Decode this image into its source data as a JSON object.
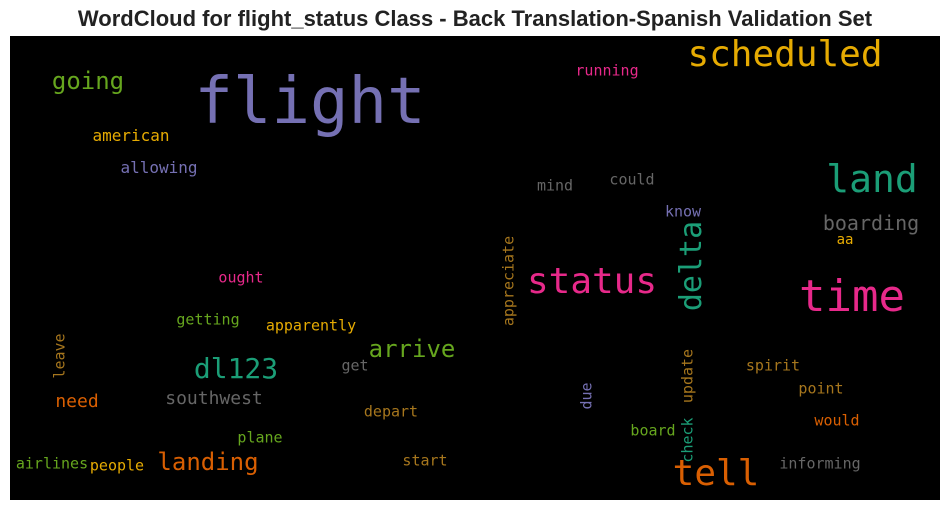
{
  "title": "WordCloud for flight_status Class - Back Translation-Spanish Validation Set",
  "chart_data": {
    "type": "wordcloud",
    "background": "#000000",
    "words": [
      {
        "text": "flight",
        "size": 64,
        "color": "#7570b3",
        "orientation": "horizontal"
      },
      {
        "text": "scheduled",
        "size": 36,
        "color": "#e6ab02",
        "orientation": "horizontal"
      },
      {
        "text": "time",
        "size": 44,
        "color": "#e7298a",
        "orientation": "horizontal"
      },
      {
        "text": "land",
        "size": 38,
        "color": "#1b9e77",
        "orientation": "horizontal"
      },
      {
        "text": "status",
        "size": 36,
        "color": "#e7298a",
        "orientation": "horizontal"
      },
      {
        "text": "tell",
        "size": 36,
        "color": "#d95f02",
        "orientation": "horizontal"
      },
      {
        "text": "delta",
        "size": 30,
        "color": "#1b9e77",
        "orientation": "vertical"
      },
      {
        "text": "dl123",
        "size": 28,
        "color": "#1b9e77",
        "orientation": "horizontal"
      },
      {
        "text": "going",
        "size": 24,
        "color": "#66a61e",
        "orientation": "horizontal"
      },
      {
        "text": "landing",
        "size": 24,
        "color": "#d95f02",
        "orientation": "horizontal"
      },
      {
        "text": "arrive",
        "size": 24,
        "color": "#66a61e",
        "orientation": "horizontal"
      },
      {
        "text": "boarding",
        "size": 20,
        "color": "#666666",
        "orientation": "horizontal"
      },
      {
        "text": "southwest",
        "size": 18,
        "color": "#666666",
        "orientation": "horizontal"
      },
      {
        "text": "need",
        "size": 18,
        "color": "#d95f02",
        "orientation": "horizontal"
      },
      {
        "text": "american",
        "size": 16,
        "color": "#e6ab02",
        "orientation": "horizontal"
      },
      {
        "text": "allowing",
        "size": 16,
        "color": "#7570b3",
        "orientation": "horizontal"
      },
      {
        "text": "running",
        "size": 15,
        "color": "#e7298a",
        "orientation": "horizontal"
      },
      {
        "text": "mind",
        "size": 15,
        "color": "#666666",
        "orientation": "horizontal"
      },
      {
        "text": "could",
        "size": 15,
        "color": "#666666",
        "orientation": "horizontal"
      },
      {
        "text": "know",
        "size": 15,
        "color": "#7570b3",
        "orientation": "horizontal"
      },
      {
        "text": "aa",
        "size": 14,
        "color": "#e6ab02",
        "orientation": "horizontal"
      },
      {
        "text": "appreciate",
        "size": 15,
        "color": "#a6761d",
        "orientation": "vertical"
      },
      {
        "text": "ought",
        "size": 15,
        "color": "#e7298a",
        "orientation": "horizontal"
      },
      {
        "text": "getting",
        "size": 15,
        "color": "#66a61e",
        "orientation": "horizontal"
      },
      {
        "text": "apparently",
        "size": 15,
        "color": "#e6ab02",
        "orientation": "horizontal"
      },
      {
        "text": "leave",
        "size": 15,
        "color": "#a6761d",
        "orientation": "vertical"
      },
      {
        "text": "get",
        "size": 15,
        "color": "#666666",
        "orientation": "horizontal"
      },
      {
        "text": "depart",
        "size": 15,
        "color": "#a6761d",
        "orientation": "horizontal"
      },
      {
        "text": "plane",
        "size": 15,
        "color": "#66a61e",
        "orientation": "horizontal"
      },
      {
        "text": "start",
        "size": 15,
        "color": "#a6761d",
        "orientation": "horizontal"
      },
      {
        "text": "airlines",
        "size": 15,
        "color": "#66a61e",
        "orientation": "horizontal"
      },
      {
        "text": "people",
        "size": 15,
        "color": "#e6ab02",
        "orientation": "horizontal"
      },
      {
        "text": "due",
        "size": 15,
        "color": "#7570b3",
        "orientation": "vertical"
      },
      {
        "text": "update",
        "size": 15,
        "color": "#a6761d",
        "orientation": "vertical"
      },
      {
        "text": "check",
        "size": 15,
        "color": "#1b9e77",
        "orientation": "vertical"
      },
      {
        "text": "board",
        "size": 15,
        "color": "#66a61e",
        "orientation": "horizontal"
      },
      {
        "text": "spirit",
        "size": 15,
        "color": "#a6761d",
        "orientation": "horizontal"
      },
      {
        "text": "point",
        "size": 15,
        "color": "#a6761d",
        "orientation": "horizontal"
      },
      {
        "text": "would",
        "size": 15,
        "color": "#d95f02",
        "orientation": "horizontal"
      },
      {
        "text": "informing",
        "size": 15,
        "color": "#666666",
        "orientation": "horizontal"
      }
    ]
  }
}
